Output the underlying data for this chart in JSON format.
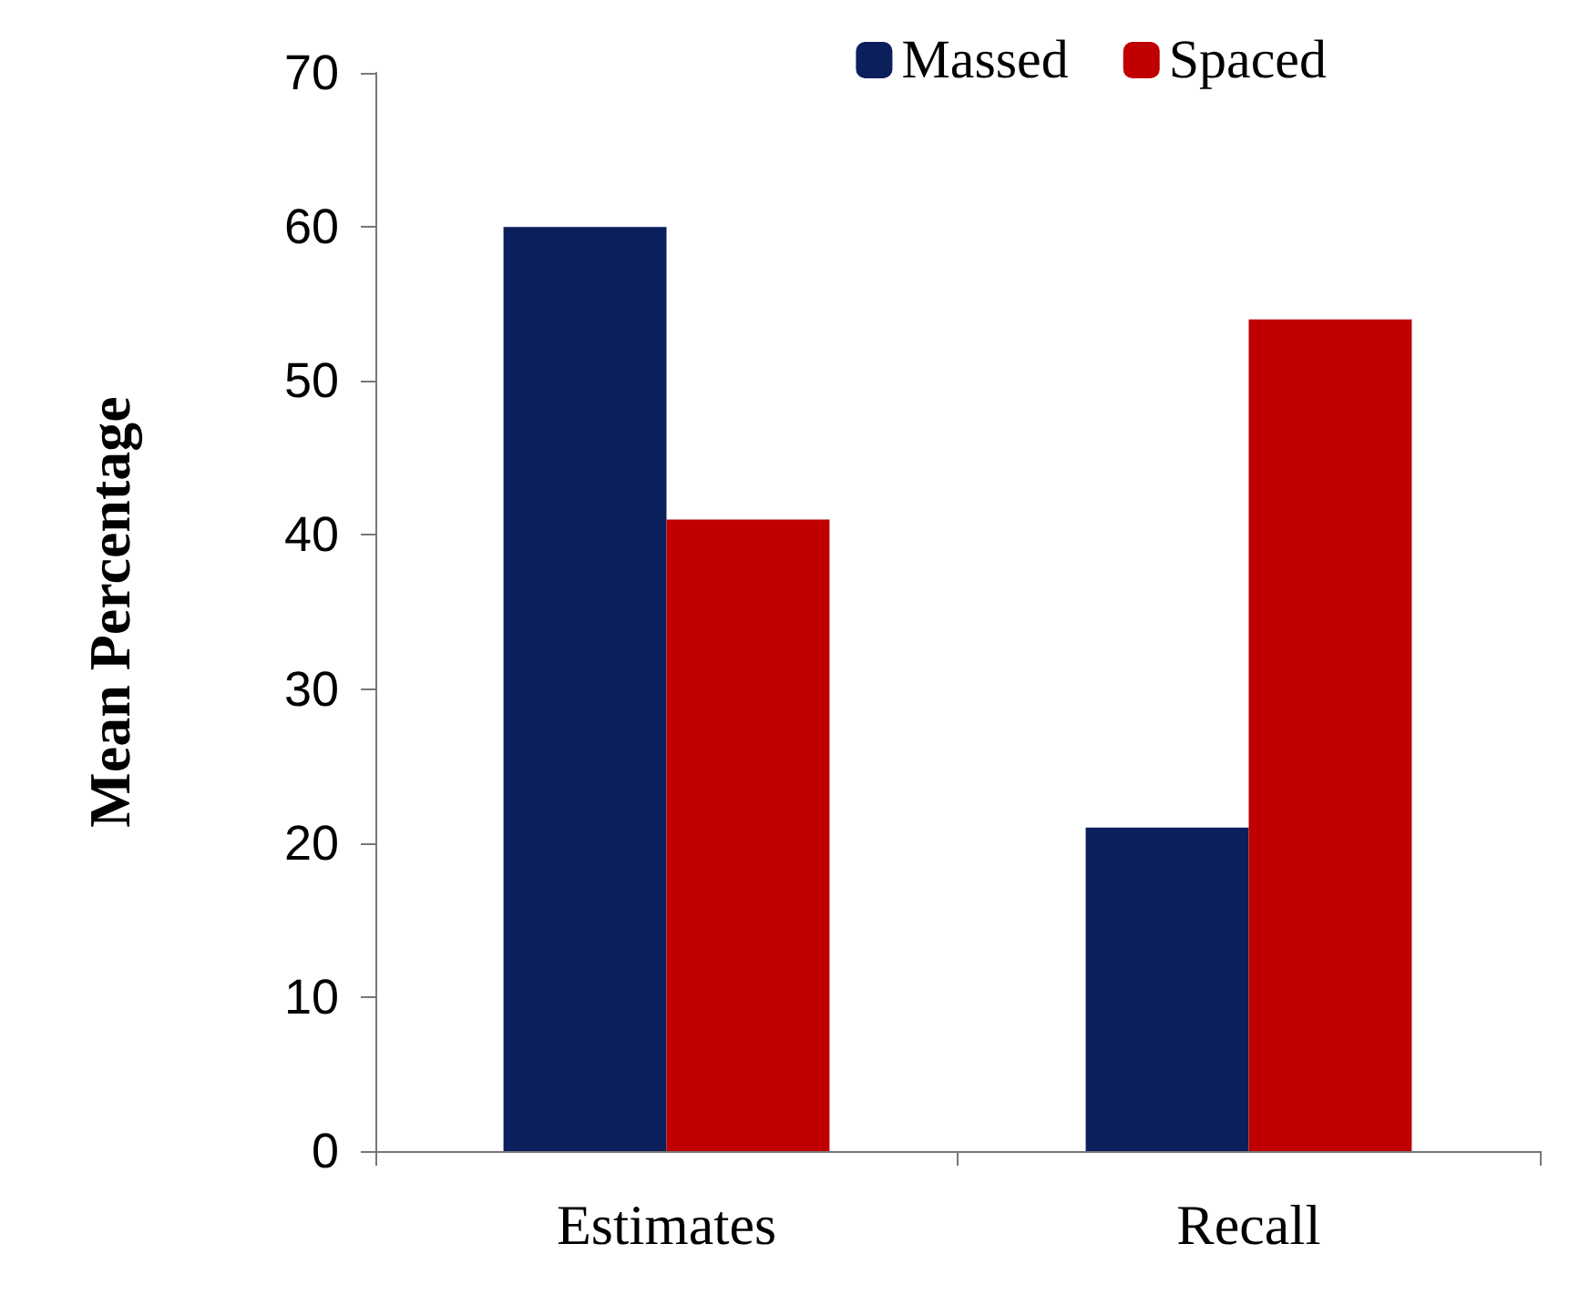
{
  "chart_data": {
    "type": "bar",
    "ylabel": "Mean Percentage",
    "categories": [
      "Estimates",
      "Recall"
    ],
    "series": [
      {
        "name": "Massed",
        "color": "#0a1f5c",
        "values": [
          60,
          21
        ]
      },
      {
        "name": "Spaced",
        "color": "#c00000",
        "values": [
          41,
          54
        ]
      }
    ],
    "ylim": [
      0,
      70
    ],
    "yticks": [
      0,
      10,
      20,
      30,
      40,
      50,
      60,
      70
    ],
    "grid": false,
    "legend": "top right"
  }
}
